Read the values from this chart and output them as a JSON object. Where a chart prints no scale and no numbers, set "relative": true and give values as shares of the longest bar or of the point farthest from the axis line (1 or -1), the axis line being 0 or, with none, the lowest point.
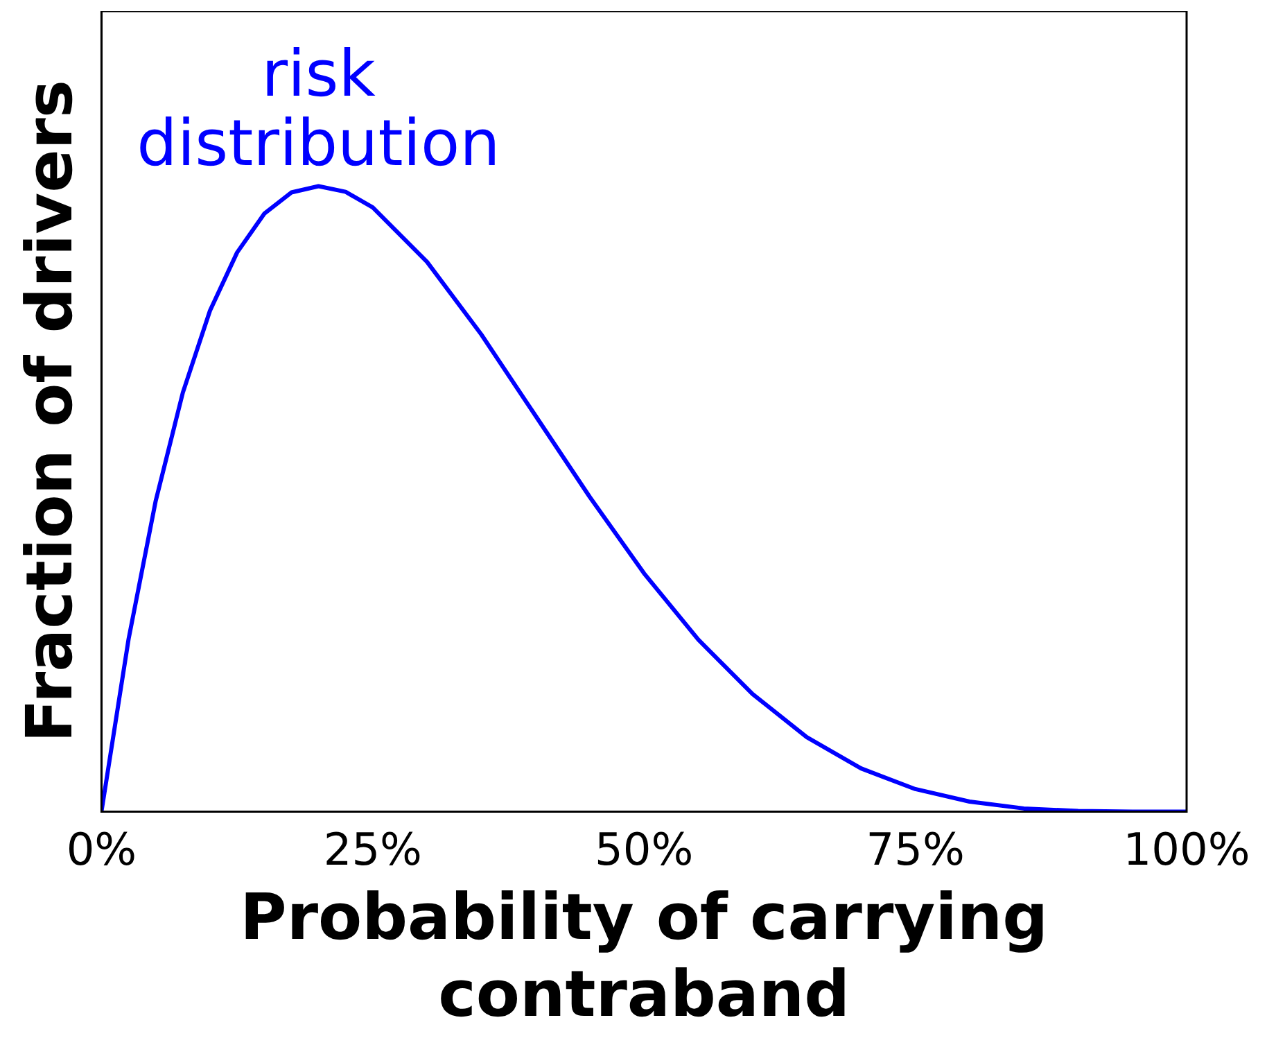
{
  "chart_data": {
    "type": "line",
    "relative": true,
    "xlabel": "Probability of carrying contraband",
    "ylabel": "Fraction of drivers",
    "annotations": [
      "risk distribution"
    ],
    "xlim": [
      0,
      100
    ],
    "xticks": [
      {
        "value": 0,
        "label": "0%"
      },
      {
        "value": 25,
        "label": "25%"
      },
      {
        "value": 50,
        "label": "50%"
      },
      {
        "value": 75,
        "label": "75%"
      },
      {
        "value": 100,
        "label": "100%"
      }
    ],
    "grid": false,
    "legend": false,
    "marker": "none",
    "line_style": "solid",
    "x": [
      0,
      2.5,
      5,
      7.5,
      10,
      12.5,
      15,
      17.5,
      20,
      22.5,
      25,
      30,
      35,
      40,
      45,
      50,
      55,
      60,
      65,
      70,
      75,
      80,
      85,
      90,
      95,
      100
    ],
    "series": [
      {
        "color": "#0000ff",
        "values": [
          0,
          0.276,
          0.497,
          0.67,
          0.801,
          0.894,
          0.956,
          0.99,
          1,
          0.991,
          0.966,
          0.879,
          0.763,
          0.633,
          0.503,
          0.381,
          0.275,
          0.188,
          0.119,
          0.069,
          0.036,
          0.016,
          0.005,
          0.001,
          0,
          0
        ]
      }
    ]
  }
}
